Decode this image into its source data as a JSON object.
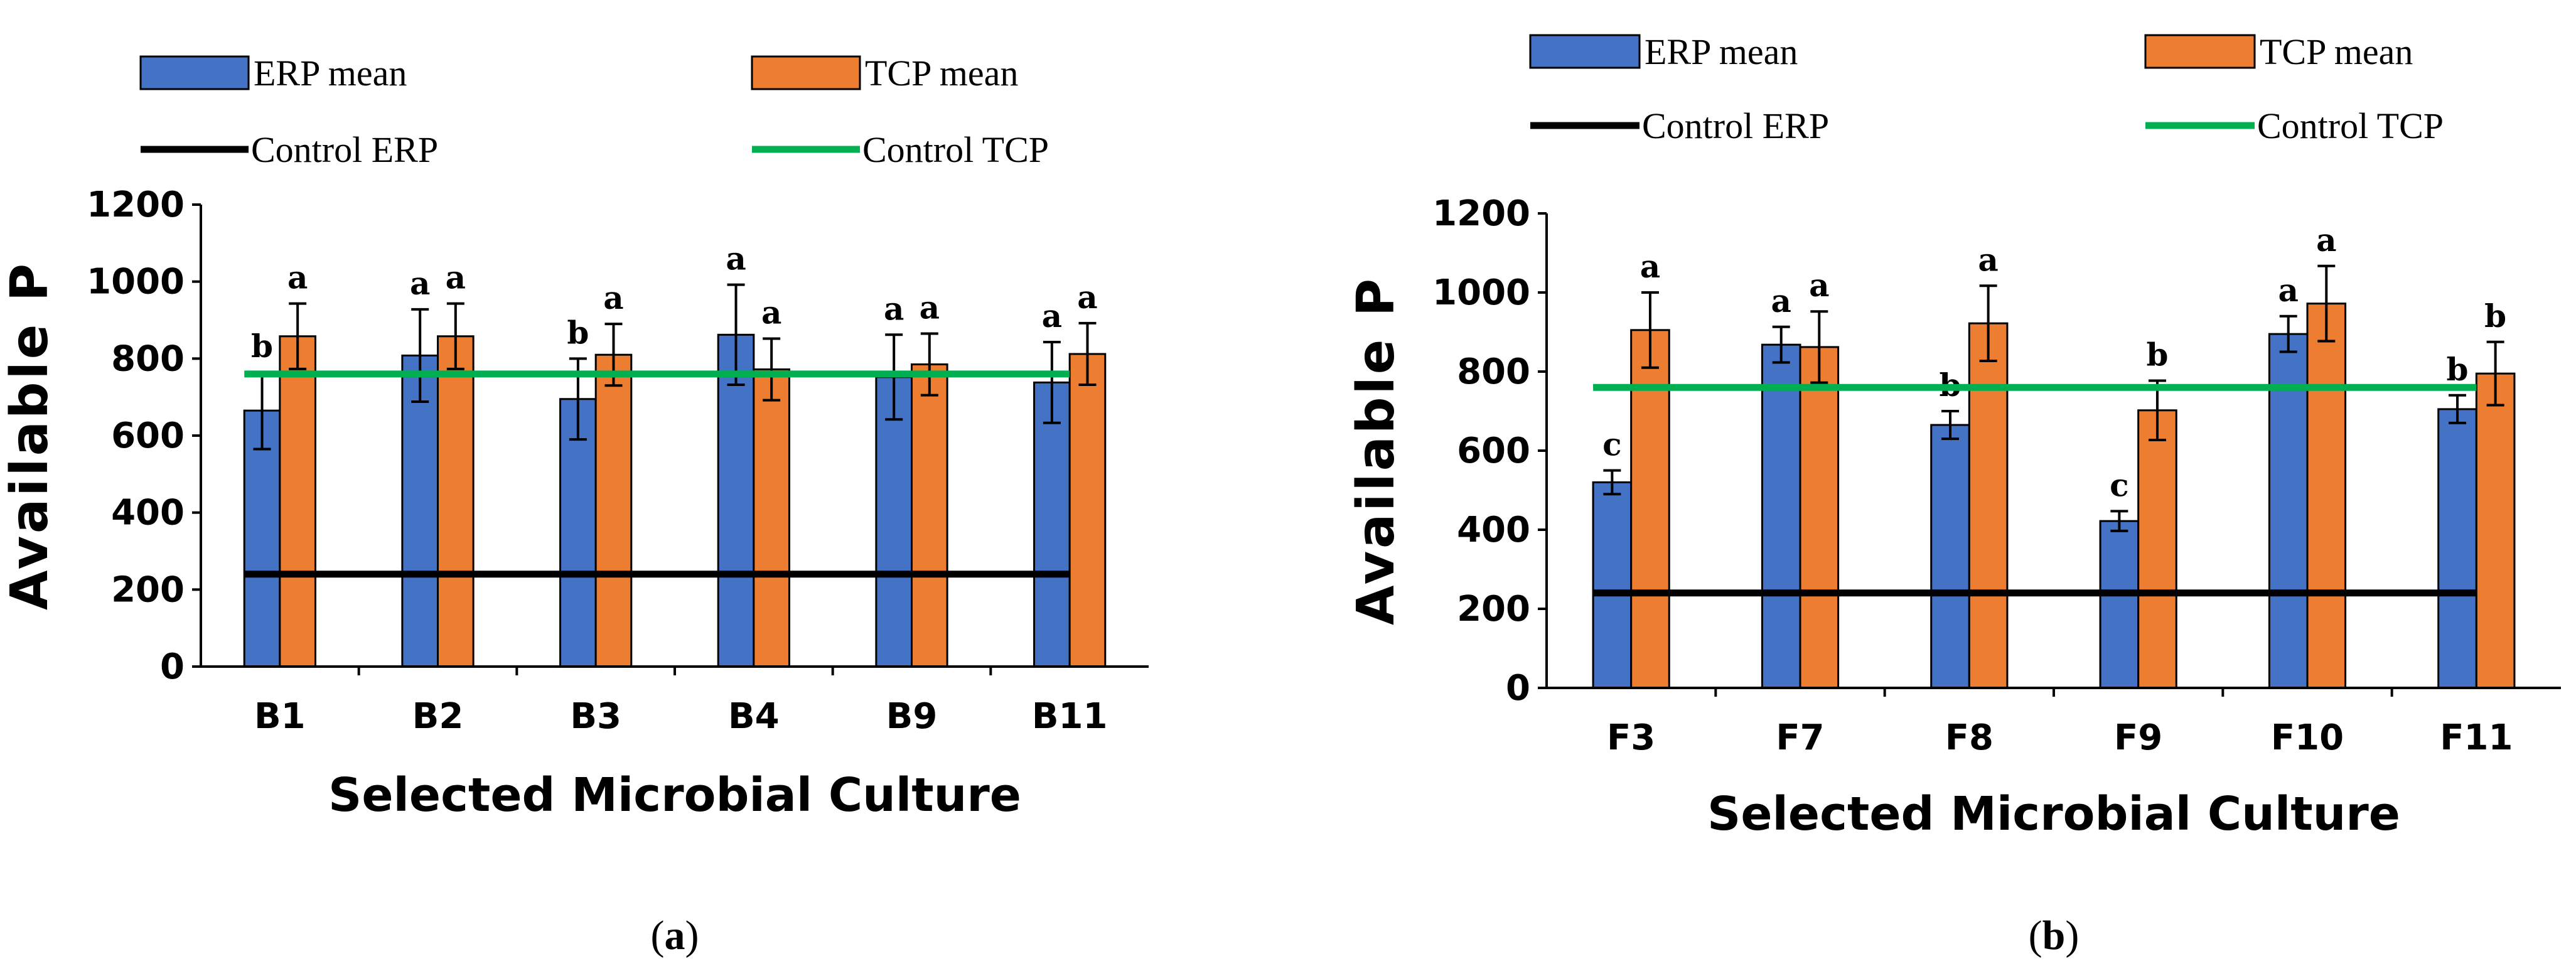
{
  "chart_data": [
    {
      "type": "bar",
      "panel_label": "a",
      "categories": [
        "B1",
        "B2",
        "B3",
        "B4",
        "B9",
        "B11"
      ],
      "series": [
        {
          "name": "ERP mean",
          "color": "#4472C4",
          "values": [
            665,
            808,
            695,
            862,
            752,
            738
          ],
          "errors": [
            100,
            120,
            105,
            130,
            110,
            105
          ],
          "letters": [
            "b",
            "a",
            "b",
            "a",
            "a",
            "a"
          ]
        },
        {
          "name": "TCP mean",
          "color": "#ED7D31",
          "values": [
            858,
            858,
            810,
            772,
            785,
            812
          ],
          "errors": [
            85,
            85,
            80,
            80,
            80,
            80
          ],
          "letters": [
            "a",
            "a",
            "a",
            "a",
            "a",
            "a"
          ]
        }
      ],
      "reference_lines": [
        {
          "name": "Control ERP",
          "value": 240,
          "color": "#000000"
        },
        {
          "name": "Control TCP",
          "value": 760,
          "color": "#00B050"
        }
      ],
      "xlabel": "Selected Microbial Culture",
      "ylabel": "Available P",
      "ylim": [
        0,
        1200
      ],
      "yticks": [
        0,
        200,
        400,
        600,
        800,
        1000,
        1200
      ],
      "grid": false,
      "legend_position": "top"
    },
    {
      "type": "bar",
      "panel_label": "b",
      "categories": [
        "F3",
        "F7",
        "F8",
        "F9",
        "F10",
        "F11"
      ],
      "series": [
        {
          "name": "ERP mean",
          "color": "#4472C4",
          "values": [
            520,
            868,
            665,
            422,
            895,
            705
          ],
          "errors": [
            30,
            45,
            35,
            25,
            45,
            35
          ],
          "letters": [
            "c",
            "a",
            "b",
            "c",
            "a",
            "b"
          ]
        },
        {
          "name": "TCP mean",
          "color": "#ED7D31",
          "values": [
            905,
            862,
            922,
            702,
            972,
            795
          ],
          "errors": [
            95,
            90,
            95,
            75,
            95,
            80
          ],
          "letters": [
            "a",
            "a",
            "a",
            "b",
            "a",
            "b"
          ]
        }
      ],
      "reference_lines": [
        {
          "name": "Control ERP",
          "value": 240,
          "color": "#000000"
        },
        {
          "name": "Control TCP",
          "value": 760,
          "color": "#00B050"
        }
      ],
      "xlabel": "Selected Microbial Culture",
      "ylabel": "Available P",
      "ylim": [
        0,
        1200
      ],
      "yticks": [
        0,
        200,
        400,
        600,
        800,
        1000,
        1200
      ],
      "grid": false,
      "legend_position": "top"
    }
  ]
}
